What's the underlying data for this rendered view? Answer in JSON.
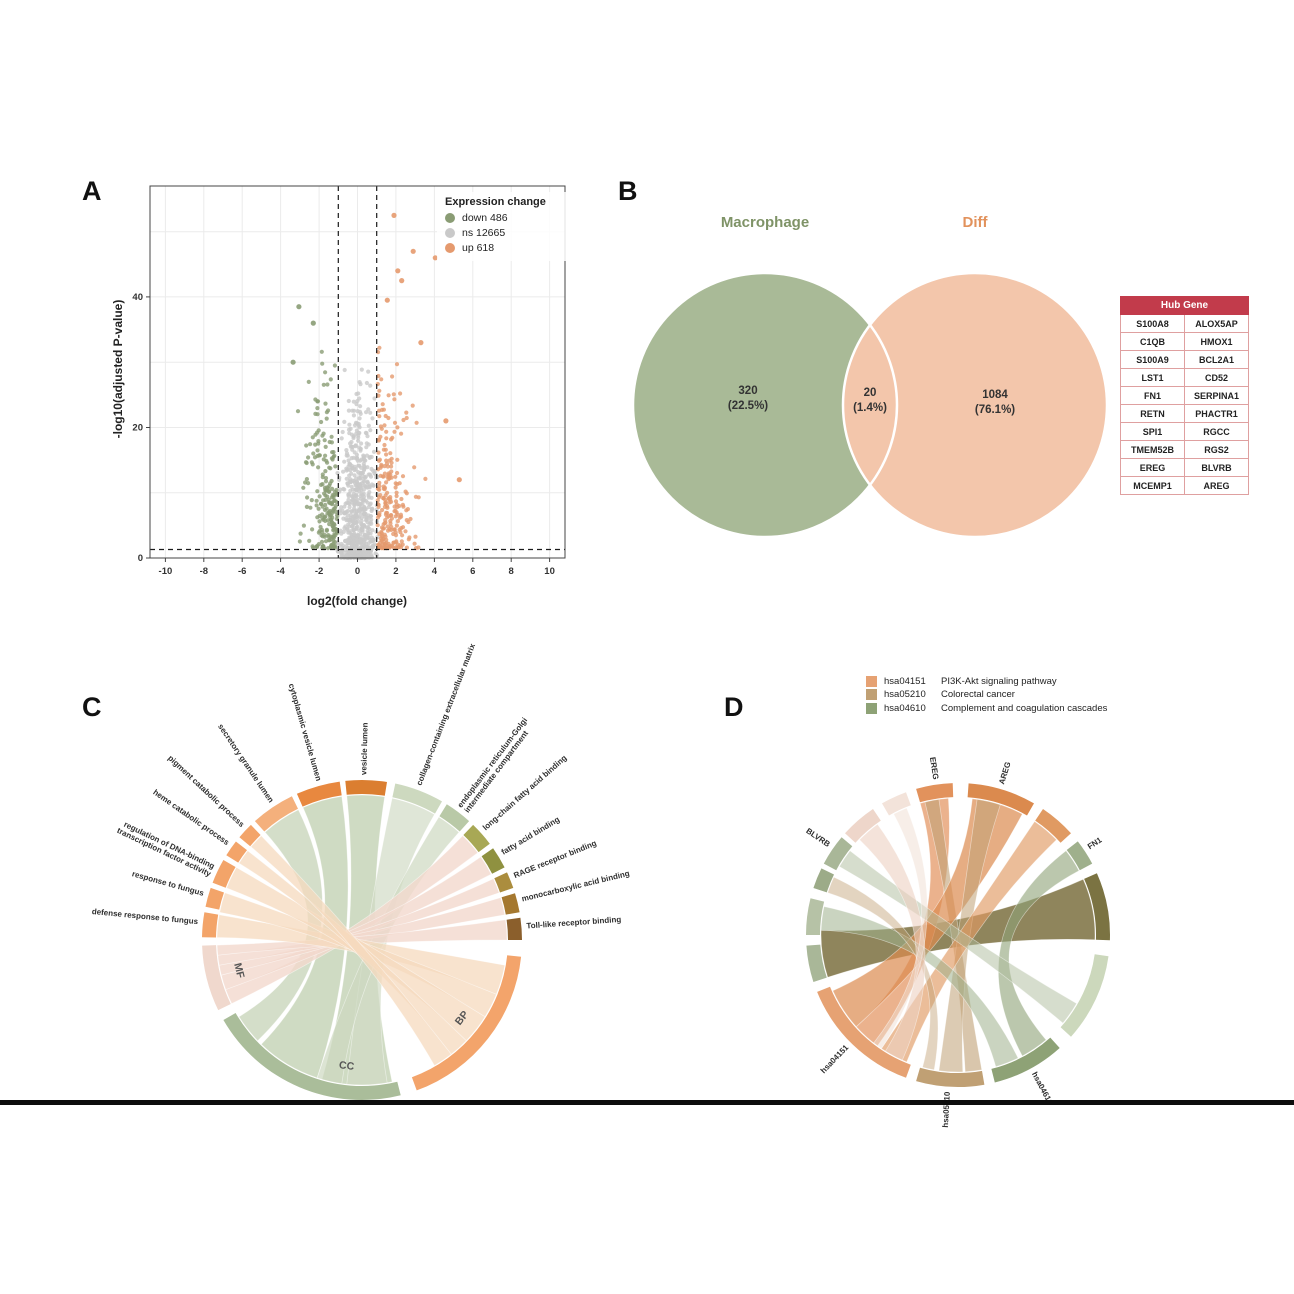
{
  "panels": {
    "a": "A",
    "b": "B",
    "c": "C",
    "d": "D"
  },
  "chart_data": [
    {
      "id": "volcano",
      "type": "scatter",
      "xlabel": "log2(fold change)",
      "ylabel": "-log10(adjusted P-value)",
      "xlim": [
        -10.8,
        10.8
      ],
      "ylim": [
        0,
        57
      ],
      "x_ticks": [
        -10,
        -8,
        -6,
        -4,
        -2,
        0,
        2,
        4,
        6,
        8,
        10
      ],
      "y_ticks": [
        0,
        20,
        40
      ],
      "thresholds": {
        "fold_change": [
          -1,
          1
        ],
        "pvalue_line": 1.3
      },
      "legend": {
        "title": "Expression change",
        "entries": [
          {
            "key": "down",
            "label": "down 486",
            "count": 486,
            "color": "#8a9c74"
          },
          {
            "key": "ns",
            "label": "ns 12665",
            "count": 12665,
            "color": "#c9c9c9"
          },
          {
            "key": "up",
            "label": "up 618",
            "count": 618,
            "color": "#e59a6e"
          }
        ]
      },
      "clusters": [
        {
          "name": "ns",
          "color": "#c9c9c9",
          "n": 650,
          "x_sd": 0.42,
          "x_clip": 1.04,
          "y_pow": 1.7,
          "y_max": 30
        },
        {
          "name": "down",
          "color": "#8a9c74",
          "n": 215,
          "x_off": -1.05,
          "x_sd": 0.78,
          "x_clip": 4.3,
          "y_base": 1.5,
          "y_pow": 1.5,
          "y_max": 34
        },
        {
          "name": "up",
          "color": "#e59a6e",
          "n": 245,
          "x_off": 1.05,
          "x_sd": 0.88,
          "x_clip": 5.6,
          "y_base": 1.5,
          "y_pow": 1.5,
          "y_max": 36
        }
      ],
      "outliers": [
        [
          1.9,
          52.5,
          "up"
        ],
        [
          2.9,
          47,
          "up"
        ],
        [
          4.05,
          46,
          "up"
        ],
        [
          2.3,
          42.5,
          "up"
        ],
        [
          2.1,
          44,
          "up"
        ],
        [
          1.55,
          39.5,
          "up"
        ],
        [
          3.3,
          33,
          "up"
        ],
        [
          4.6,
          21,
          "up"
        ],
        [
          5.3,
          12,
          "up"
        ],
        [
          -3.05,
          38.5,
          "down"
        ],
        [
          -2.3,
          36,
          "down"
        ],
        [
          -3.35,
          30,
          "down"
        ]
      ]
    },
    {
      "id": "venn",
      "type": "venn",
      "left": {
        "title": "Macrophage",
        "count": "320",
        "pct": "(22.5%)",
        "color": "#a9ba97"
      },
      "right": {
        "title": "Diff",
        "count": "1084",
        "pct": "(76.1%)",
        "color": "#f3c6ab"
      },
      "overlap": {
        "count": "20",
        "pct": "(1.4%)",
        "color": "#c49a72"
      }
    },
    {
      "id": "hub_table",
      "type": "table",
      "header": "Hub Gene",
      "rows": [
        [
          "S100A8",
          "ALOX5AP"
        ],
        [
          "C1QB",
          "HMOX1"
        ],
        [
          "S100A9",
          "BCL2A1"
        ],
        [
          "LST1",
          "CD52"
        ],
        [
          "FN1",
          "SERPINA1"
        ],
        [
          "RETN",
          "PHACTR1"
        ],
        [
          "SPI1",
          "RGCC"
        ],
        [
          "TMEM52B",
          "RGS2"
        ],
        [
          "EREG",
          "BLVRB"
        ],
        [
          "MCEMP1",
          "AREG"
        ]
      ]
    },
    {
      "id": "go_chord",
      "type": "chord",
      "categories": [
        "MF",
        "CC",
        "BP"
      ],
      "sectors": [
        {
          "a0": 96,
          "a1": 160,
          "color": "#f3a46b",
          "label": "BP",
          "band": true,
          "labelMid": 128
        },
        {
          "a0": 166,
          "a1": 240,
          "color": "#aabd9a",
          "label": "CC",
          "band": true,
          "labelMid": 187
        },
        {
          "a0": 244,
          "a1": 268,
          "color": "#f0d8cd",
          "label": "MF",
          "band": true,
          "labelMid": 256
        },
        {
          "a0": 271,
          "a1": 280,
          "color": "#f3a469",
          "label": "defense response to fungus"
        },
        {
          "a0": 282,
          "a1": 289,
          "color": "#f3a469",
          "label": "response to fungus"
        },
        {
          "a0": 291,
          "a1": 300,
          "color": "#f3a469",
          "label": "regulation of DNA-binding",
          "label2": "transcription factor activity"
        },
        {
          "a0": 302,
          "a1": 308,
          "color": "#f3a469",
          "label": "heme catabolic process"
        },
        {
          "a0": 310,
          "a1": 316,
          "color": "#f3a469",
          "label": "pigment catabolic process"
        },
        {
          "a0": 318,
          "a1": 334,
          "color": "#f4b07c",
          "label": "secretory granule lumen"
        },
        {
          "a0": 336,
          "a1": 352,
          "color": "#e8883f",
          "label": "cytoplasmic vesicle lumen"
        },
        {
          "a0": 354,
          "a1": 369,
          "color": "#db7e30",
          "label": "vesicle lumen"
        },
        {
          "a0": 12,
          "a1": 30,
          "color": "#cdd9bf",
          "label": "collagen-containing extracellular matrix"
        },
        {
          "a0": 32,
          "a1": 42,
          "color": "#b9c9a7",
          "label": "endoplasmic reticulum-Golgi",
          "label2": "intermediate compartment"
        },
        {
          "a0": 44,
          "a1": 53,
          "color": "#a8a855",
          "label": "long-chain fatty acid binding"
        },
        {
          "a0": 55,
          "a1": 63,
          "color": "#8f9140",
          "label": "fatty acid binding"
        },
        {
          "a0": 65,
          "a1": 71,
          "color": "#ab8d3e",
          "label": "RAGE receptor binding"
        },
        {
          "a0": 73,
          "a1": 80,
          "color": "#a5782f",
          "label": "monocarboxylic acid binding"
        },
        {
          "a0": 82,
          "a1": 90,
          "color": "#8b5f2c",
          "label": "Toll-like receptor binding"
        }
      ],
      "ribbons": [
        {
          "s": [
            168,
            196
          ],
          "t": [
            354,
            369
          ],
          "c": "#c3d2b4",
          "o": 0.8
        },
        {
          "s": [
            198,
            224
          ],
          "t": [
            336,
            352
          ],
          "c": "#c3d2b4",
          "o": 0.8
        },
        {
          "s": [
            226,
            238
          ],
          "t": [
            318,
            334
          ],
          "c": "#c9d6bb",
          "o": 0.8
        },
        {
          "s": [
            170,
            186
          ],
          "t": [
            12,
            30
          ],
          "c": "#d2dcc6",
          "o": 0.7
        },
        {
          "s": [
            188,
            198
          ],
          "t": [
            32,
            42
          ],
          "c": "#cdd8c0",
          "o": 0.7
        },
        {
          "s": [
            244,
            250
          ],
          "t": [
            44,
            53
          ],
          "c": "#f2d8cd",
          "o": 0.8
        },
        {
          "s": [
            250,
            256
          ],
          "t": [
            55,
            63
          ],
          "c": "#f2d8cd",
          "o": 0.8
        },
        {
          "s": [
            256,
            260
          ],
          "t": [
            65,
            71
          ],
          "c": "#f2d8cd",
          "o": 0.8
        },
        {
          "s": [
            260,
            264
          ],
          "t": [
            73,
            80
          ],
          "c": "#f2d8cd",
          "o": 0.8
        },
        {
          "s": [
            264,
            268
          ],
          "t": [
            82,
            90
          ],
          "c": "#f2d8cd",
          "o": 0.8
        },
        {
          "s": [
            100,
            112
          ],
          "t": [
            271,
            280
          ],
          "c": "#f6d9be",
          "o": 0.75
        },
        {
          "s": [
            112,
            122
          ],
          "t": [
            281,
            289
          ],
          "c": "#f6d9be",
          "o": 0.75
        },
        {
          "s": [
            122,
            134
          ],
          "t": [
            291,
            300
          ],
          "c": "#f6d9be",
          "o": 0.75
        },
        {
          "s": [
            134,
            142
          ],
          "t": [
            302,
            308
          ],
          "c": "#f6d9be",
          "o": 0.75
        },
        {
          "s": [
            142,
            150
          ],
          "t": [
            310,
            316
          ],
          "c": "#f6d9be",
          "o": 0.75
        }
      ]
    },
    {
      "id": "kegg_chord",
      "type": "chord",
      "legend": {
        "entries": [
          {
            "code": "hsa04151",
            "name": "PI3K-Akt signaling pathway",
            "color": "#e6a273"
          },
          {
            "code": "hsa05210",
            "name": "Colorectal cancer",
            "color": "#c0a074"
          },
          {
            "code": "hsa04610",
            "name": "Complement and coagulation cascades",
            "color": "#8ea276"
          }
        ]
      },
      "sectors": [
        {
          "a0": 344,
          "a1": 358,
          "color": "#e2925c",
          "label": "EREG"
        },
        {
          "a0": 4,
          "a1": 30,
          "color": "#db8a4e",
          "label": "AREG"
        },
        {
          "a0": 34,
          "a1": 48,
          "color": "#e09a62"
        },
        {
          "a0": 52,
          "a1": 62,
          "color": "#9fb08c",
          "label": "FN1"
        },
        {
          "a0": 66,
          "a1": 92,
          "color": "#7b7342"
        },
        {
          "a0": 98,
          "a1": 132,
          "color": "#ccd8bc"
        },
        {
          "a0": 138,
          "a1": 166,
          "color": "#8ea276",
          "label": "hsa04610"
        },
        {
          "a0": 170,
          "a1": 196,
          "color": "#c0a074",
          "label": "hsa05210"
        },
        {
          "a0": 200,
          "a1": 248,
          "color": "#e6a273",
          "label": "hsa04151"
        },
        {
          "a0": 252,
          "a1": 266,
          "color": "#a9b798"
        },
        {
          "a0": 270,
          "a1": 284,
          "color": "#b6c2a6"
        },
        {
          "a0": 288,
          "a1": 296,
          "color": "#9cab88"
        },
        {
          "a0": 298,
          "a1": 310,
          "color": "#a9b798",
          "label": "BLVRB"
        },
        {
          "a0": 312,
          "a1": 326,
          "color": "#eed6ca"
        },
        {
          "a0": 330,
          "a1": 340,
          "color": "#f3e3da"
        }
      ],
      "ribbons": [
        {
          "s": [
            66,
            92
          ],
          "t": [
            252,
            272
          ],
          "c": "#7b7040",
          "o": 0.85
        },
        {
          "s": [
            344,
            356
          ],
          "t": [
            216,
            228
          ],
          "c": "#e2925c",
          "o": 0.7
        },
        {
          "s": [
            346,
            352
          ],
          "t": [
            170,
            177
          ],
          "c": "#c0a074",
          "o": 0.6
        },
        {
          "s": [
            6,
            28
          ],
          "t": [
            228,
            246
          ],
          "c": "#db8a4e",
          "o": 0.7
        },
        {
          "s": [
            8,
            18
          ],
          "t": [
            178,
            188
          ],
          "c": "#c0a074",
          "o": 0.55
        },
        {
          "s": [
            34,
            46
          ],
          "t": [
            202,
            214
          ],
          "c": "#e09a62",
          "o": 0.65
        },
        {
          "s": [
            52,
            62
          ],
          "t": [
            140,
            152
          ],
          "c": "#8ea276",
          "o": 0.6
        },
        {
          "s": [
            272,
            282
          ],
          "t": [
            154,
            164
          ],
          "c": "#9fb08c",
          "o": 0.55
        },
        {
          "s": [
            288,
            295
          ],
          "t": [
            190,
            195
          ],
          "c": "#c0a074",
          "o": 0.45
        },
        {
          "s": [
            300,
            308
          ],
          "t": [
            120,
            130
          ],
          "c": "#aebc9c",
          "o": 0.5
        },
        {
          "s": [
            314,
            324
          ],
          "t": [
            204,
            212
          ],
          "c": "#ecd0c2",
          "o": 0.6
        },
        {
          "s": [
            332,
            338
          ],
          "t": [
            214,
            218
          ],
          "c": "#f0ddd2",
          "o": 0.5
        }
      ]
    }
  ]
}
